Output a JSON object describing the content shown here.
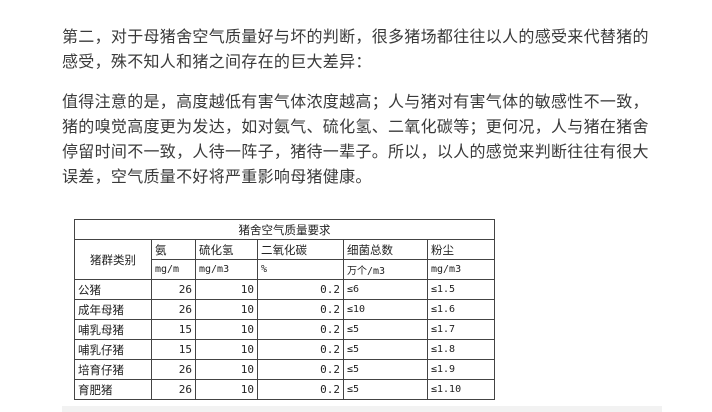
{
  "paragraphs": [
    "第二，对于母猪舍空气质量好与坏的判断，很多猪场都往往以人的感受来代替猪的感受，殊不知人和猪之间存在的巨大差异：",
    "值得注意的是，高度越低有害气体浓度越高；人与猪对有害气体的敏感性不一致，猪的嗅觉高度更为发达，如对氨气、硫化氢、二氧化碳等；更何况，人与猪在猪舍停留时间不一致，人待一阵子，猪待一辈子。所以，以人的感觉来判断往往有很大误差，空气质量不好将严重影响母猪健康。"
  ],
  "table": {
    "title": "猪舍空气质量要求",
    "row_header": "猪群类别",
    "columns": [
      {
        "name": "氨",
        "unit": "mg/m"
      },
      {
        "name": "硫化氢",
        "unit": "mg/m3"
      },
      {
        "name": "二氧化碳",
        "unit": "%"
      },
      {
        "name": "细菌总数",
        "unit": "万个/m3"
      },
      {
        "name": "粉尘",
        "unit": "mg/m3"
      }
    ],
    "rows": [
      [
        "公猪",
        "26",
        "10",
        "0.2",
        "≤6",
        "≤1.5"
      ],
      [
        "成年母猪",
        "26",
        "10",
        "0.2",
        "≤10",
        "≤1.6"
      ],
      [
        "哺乳母猪",
        "15",
        "10",
        "0.2",
        "≤5",
        "≤1.7"
      ],
      [
        "哺乳仔猪",
        "15",
        "10",
        "0.2",
        "≤5",
        "≤1.8"
      ],
      [
        "培育仔猪",
        "26",
        "10",
        "0.2",
        "≤5",
        "≤1.9"
      ],
      [
        "育肥猪",
        "26",
        "10",
        "0.2",
        "≤5",
        "≤1.10"
      ]
    ]
  }
}
